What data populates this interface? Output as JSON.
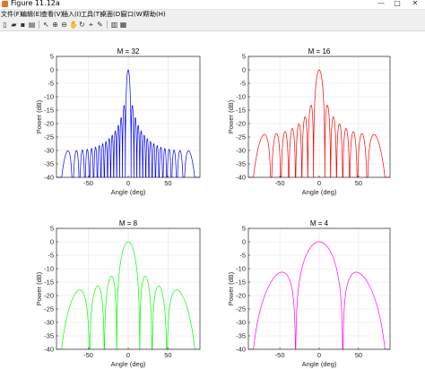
{
  "window": {
    "title": "Figure 11.12a",
    "controls": [
      "—",
      "□",
      "✕"
    ]
  },
  "menu": {
    "items": [
      "文件(F)",
      "编辑(E)",
      "查看(V)",
      "插入(I)",
      "工具(T)",
      "桌面(D)",
      "窗口(W)",
      "帮助(H)"
    ]
  },
  "toolbar": {
    "icons": [
      "new-figure-icon",
      "open-file-icon",
      "save-icon",
      "print-icon",
      "pointer-icon",
      "zoom-in-icon",
      "zoom-out-icon",
      "pan-icon",
      "rotate-3d-icon",
      "data-cursor-icon",
      "brush-icon",
      "colorbar-icon",
      "legend-icon"
    ]
  },
  "chart_data": [
    {
      "type": "line",
      "title": "M = 32",
      "xlabel": "Angle (deg)",
      "ylabel": "Power (dB)",
      "xlim": [
        -90,
        90
      ],
      "ylim": [
        -40,
        5
      ],
      "xticks": [
        -50,
        0,
        50
      ],
      "yticks": [
        5,
        0,
        -5,
        -10,
        -15,
        -20,
        -25,
        -30,
        -35,
        -40
      ],
      "grid": true,
      "series": [
        {
          "M": 32,
          "color": "#0000ff",
          "floor_db": -40
        }
      ]
    },
    {
      "type": "line",
      "title": "M = 16",
      "xlabel": "Angle (deg)",
      "ylabel": "Power (dB)",
      "xlim": [
        -90,
        90
      ],
      "ylim": [
        -40,
        5
      ],
      "xticks": [
        -50,
        0,
        50
      ],
      "yticks": [
        5,
        0,
        -5,
        -10,
        -15,
        -20,
        -25,
        -30,
        -35,
        -40
      ],
      "grid": true,
      "series": [
        {
          "M": 16,
          "color": "#ff0000",
          "floor_db": -40
        }
      ]
    },
    {
      "type": "line",
      "title": "M = 8",
      "xlabel": "Angle (deg)",
      "ylabel": "Power (dB)",
      "xlim": [
        -90,
        90
      ],
      "ylim": [
        -40,
        5
      ],
      "xticks": [
        -50,
        0,
        50
      ],
      "yticks": [
        5,
        0,
        -5,
        -10,
        -15,
        -20,
        -25,
        -30,
        -35,
        -40
      ],
      "grid": true,
      "series": [
        {
          "M": 8,
          "color": "#00ff00",
          "floor_db": -40
        }
      ]
    },
    {
      "type": "line",
      "title": "M = 4",
      "xlabel": "Angle (deg)",
      "ylabel": "Power (dB)",
      "xlim": [
        -90,
        90
      ],
      "ylim": [
        -40,
        5
      ],
      "xticks": [
        -50,
        0,
        50
      ],
      "yticks": [
        5,
        0,
        -5,
        -10,
        -15,
        -20,
        -25,
        -30,
        -35,
        -40
      ],
      "grid": true,
      "series": [
        {
          "M": 4,
          "color": "#ff00ff",
          "floor_db": -40
        }
      ]
    }
  ]
}
